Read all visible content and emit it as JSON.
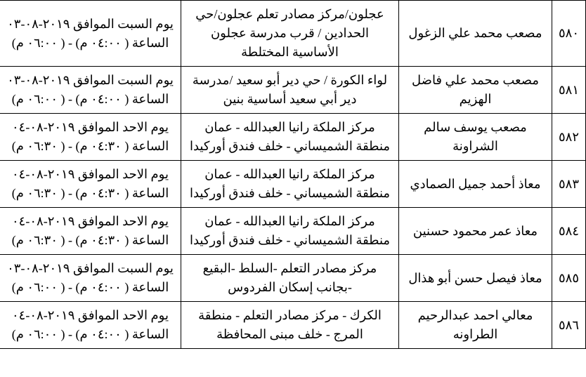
{
  "rows": [
    {
      "num": "٥٨٠",
      "name": "مصعب محمد علي الزغول",
      "location": "عجلون/مركز مصادر تعلم عجلون/حي الحدادين / قرب مدرسة عجلون الأساسية المختلطة",
      "datetime": "يوم السبت الموافق ٢٠١٩-٠٨-٠٣ الساعة ( ٠٤:٠٠ م) - ( ٠٦:٠٠ م)"
    },
    {
      "num": "٥٨١",
      "name": "مصعب محمد علي فاضل الهزيم",
      "location": "لواء الكورة / حي دير أبو سعيد /مدرسة دير أبي سعيد أساسية بنين",
      "datetime": "يوم السبت الموافق ٢٠١٩-٠٨-٠٣ الساعة ( ٠٤:٠٠ م) - ( ٠٦:٠٠ م)"
    },
    {
      "num": "٥٨٢",
      "name": "مصعب يوسف سالم الشراونة",
      "location": "مركز الملكة رانيا العبدالله - عمان منطقة الشميساني - خلف فندق أوركيدا",
      "datetime": "يوم الاحد الموافق ٢٠١٩-٠٨-٠٤ الساعة ( ٠٤:٣٠ م) - ( ٠٦:٣٠ م)"
    },
    {
      "num": "٥٨٣",
      "name": "معاذ أحمد جميل الصمادي",
      "location": "مركز الملكة رانيا العبدالله - عمان منطقة الشميساني - خلف فندق أوركيدا",
      "datetime": "يوم الاحد الموافق ٢٠١٩-٠٨-٠٤ الساعة ( ٠٤:٣٠ م) - ( ٠٦:٣٠ م)"
    },
    {
      "num": "٥٨٤",
      "name": "معاذ عمر محمود حسنين",
      "location": "مركز الملكة رانيا العبدالله - عمان منطقة الشميساني - خلف فندق أوركيدا",
      "datetime": "يوم الاحد الموافق ٢٠١٩-٠٨-٠٤ الساعة ( ٠٤:٣٠ م) - ( ٠٦:٣٠ م)"
    },
    {
      "num": "٥٨٥",
      "name": "معاذ فيصل حسن أبو هذال",
      "location": "مركز مصادر التعلم -السلط -البقيع -بجانب إسكان الفردوس",
      "datetime": "يوم السبت الموافق ٢٠١٩-٠٨-٠٣ الساعة ( ٠٤:٠٠ م) - ( ٠٦:٠٠ م)"
    },
    {
      "num": "٥٨٦",
      "name": "معالي احمد عبدالرحيم الطراونه",
      "location": "الكرك - مركز مصادر التعلم - منطقة المرج - خلف مبنى المحافظة",
      "datetime": "يوم الاحد الموافق ٢٠١٩-٠٨-٠٤ الساعة ( ٠٤:٠٠ م) - ( ٠٦:٠٠ م)"
    }
  ]
}
